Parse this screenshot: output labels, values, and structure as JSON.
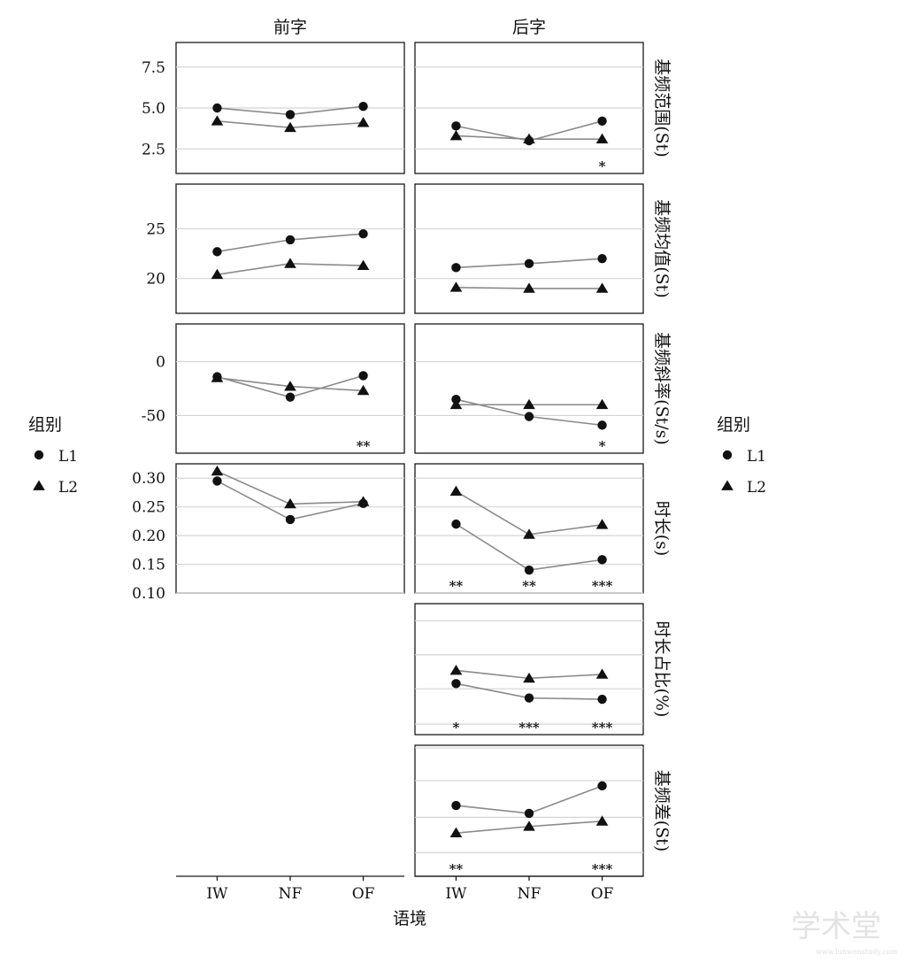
{
  "chart_data": {
    "type": "line",
    "facet_columns": [
      "前字",
      "后字"
    ],
    "categories": [
      "IW",
      "NF",
      "OF"
    ],
    "xlabel": "语境",
    "legend": {
      "title": "组别",
      "entries": [
        "L1",
        "L2"
      ],
      "shapes": [
        "circle",
        "triangle"
      ],
      "position": "left and right"
    },
    "watermark": {
      "text": "学术堂",
      "subtext": "www.lunwenstudy.com"
    },
    "rows": [
      {
        "label": "基频范围(St)",
        "ylim": [
          1.0,
          9.0
        ],
        "yticks": [
          2.5,
          5.0,
          7.5
        ],
        "ytick_labels": [
          "2.5",
          "5.0",
          "7.5"
        ],
        "panels": [
          {
            "column": "前字",
            "series": [
              {
                "name": "L1",
                "values": [
                  5.0,
                  4.6,
                  5.1
                ]
              },
              {
                "name": "L2",
                "values": [
                  4.2,
                  3.8,
                  4.1
                ]
              }
            ],
            "sig": [
              "",
              "",
              ""
            ]
          },
          {
            "column": "后字",
            "series": [
              {
                "name": "L1",
                "values": [
                  3.9,
                  3.0,
                  4.2
                ]
              },
              {
                "name": "L2",
                "values": [
                  3.3,
                  3.1,
                  3.1
                ]
              }
            ],
            "sig": [
              "",
              "",
              "*"
            ]
          }
        ]
      },
      {
        "label": "基频均值(St)",
        "ylim": [
          16.5,
          29.5
        ],
        "yticks": [
          20,
          25
        ],
        "ytick_labels": [
          "20",
          "25"
        ],
        "panels": [
          {
            "column": "前字",
            "series": [
              {
                "name": "L1",
                "values": [
                  22.7,
                  23.9,
                  24.5
                ]
              },
              {
                "name": "L2",
                "values": [
                  20.4,
                  21.5,
                  21.3
                ]
              }
            ],
            "sig": [
              "",
              "",
              ""
            ]
          },
          {
            "column": "后字",
            "series": [
              {
                "name": "L1",
                "values": [
                  21.1,
                  21.5,
                  22.0
                ]
              },
              {
                "name": "L2",
                "values": [
                  19.1,
                  19.0,
                  19.0
                ]
              }
            ],
            "sig": [
              "",
              "",
              ""
            ]
          }
        ]
      },
      {
        "label": "基频斜率(St/s)",
        "ylim": [
          -85,
          35
        ],
        "yticks": [
          -50,
          0
        ],
        "ytick_labels": [
          "-50",
          "0"
        ],
        "panels": [
          {
            "column": "前字",
            "series": [
              {
                "name": "L1",
                "values": [
                  -14,
                  -33,
                  -13
                ]
              },
              {
                "name": "L2",
                "values": [
                  -15,
                  -23,
                  -27
                ]
              }
            ],
            "sig": [
              "",
              "",
              "**"
            ]
          },
          {
            "column": "后字",
            "series": [
              {
                "name": "L1",
                "values": [
                  -35,
                  -51,
                  -59
                ]
              },
              {
                "name": "L2",
                "values": [
                  -40,
                  -40,
                  -40
                ]
              }
            ],
            "sig": [
              "",
              "",
              "*"
            ]
          }
        ]
      },
      {
        "label": "时长(s)",
        "ylim": [
          0.1,
          0.325
        ],
        "yticks": [
          0.1,
          0.15,
          0.2,
          0.25,
          0.3
        ],
        "ytick_labels": [
          "0.10",
          "0.15",
          "0.20",
          "0.25",
          "0.30"
        ],
        "panels": [
          {
            "column": "前字",
            "series": [
              {
                "name": "L1",
                "values": [
                  0.295,
                  0.228,
                  0.256
                ]
              },
              {
                "name": "L2",
                "values": [
                  0.312,
                  0.255,
                  0.259
                ]
              }
            ],
            "sig": [
              "",
              "",
              ""
            ]
          },
          {
            "column": "后字",
            "series": [
              {
                "name": "L1",
                "values": [
                  0.22,
                  0.14,
                  0.158
                ]
              },
              {
                "name": "L2",
                "values": [
                  0.277,
                  0.202,
                  0.219
                ]
              }
            ],
            "sig": [
              "**",
              "**",
              "***"
            ]
          }
        ]
      },
      {
        "label": "时长占比(%)",
        "ylim": [
          0,
          1
        ],
        "yticks": [
          0.08,
          0.35,
          0.61,
          0.87
        ],
        "ytick_labels": [
          "",
          "",
          "",
          ""
        ],
        "panels": [
          {
            "column": "前字",
            "series": [],
            "sig": []
          },
          {
            "column": "后字",
            "series": [
              {
                "name": "L1",
                "values": [
                  0.39,
                  0.28,
                  0.27
                ]
              },
              {
                "name": "L2",
                "values": [
                  0.49,
                  0.43,
                  0.46
                ]
              }
            ],
            "sig": [
              "*",
              "***",
              "***"
            ]
          }
        ]
      },
      {
        "label": "基频差(St)",
        "ylim": [
          0,
          1
        ],
        "yticks": [
          0.18,
          0.45,
          0.73,
          0.98
        ],
        "ytick_labels": [
          "",
          "",
          "",
          ""
        ],
        "panels": [
          {
            "column": "前字",
            "series": [],
            "sig": []
          },
          {
            "column": "后字",
            "series": [
              {
                "name": "L1",
                "values": [
                  0.54,
                  0.48,
                  0.69
                ]
              },
              {
                "name": "L2",
                "values": [
                  0.33,
                  0.38,
                  0.42
                ]
              }
            ],
            "sig": [
              "**",
              "",
              "***"
            ]
          }
        ]
      }
    ]
  }
}
